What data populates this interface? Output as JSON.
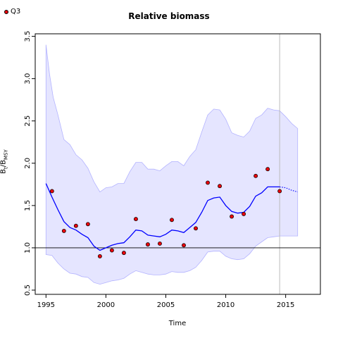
{
  "chart_data": {
    "type": "line",
    "title": "Relative biomass",
    "xlabel": "Time",
    "ylabel": {
      "main": "B",
      "sub1": "t",
      "sep": "/B",
      "sub2": "MSY"
    },
    "xlim": [
      1994.1,
      2017.9
    ],
    "ylim": [
      0.45,
      3.53
    ],
    "xticks": [
      1995,
      2000,
      2005,
      2010,
      2015
    ],
    "yticks": [
      0.5,
      1.0,
      1.5,
      2.0,
      2.5,
      3.0,
      3.5
    ],
    "ytick_labels": [
      "0.5",
      "1.0",
      "1.5",
      "2.0",
      "2.5",
      "3.0",
      "3.5"
    ],
    "reference_line_y": 1.0,
    "vertical_line_x": 2014.5,
    "legend": {
      "label": "Q3",
      "position": "top-left"
    },
    "colors": {
      "band_fill": "#e5e5ff",
      "band_edge": "#b3b3ff",
      "line": "#0000ff",
      "point_fill": "#e8000b",
      "reference": "#000000",
      "vline": "#bbbbbb"
    },
    "series": [
      {
        "kind": "median",
        "x": [
          1995.0,
          1995.5,
          1996.0,
          1996.5,
          1997.0,
          1997.5,
          1998.0,
          1998.5,
          1999.0,
          1999.5,
          2000.0,
          2000.5,
          2001.0,
          2001.5,
          2002.0,
          2002.5,
          2003.0,
          2003.5,
          2004.0,
          2004.5,
          2005.0,
          2005.5,
          2006.0,
          2006.5,
          2007.0,
          2007.5,
          2008.0,
          2008.5,
          2009.0,
          2009.5,
          2010.0,
          2010.5,
          2011.0,
          2011.5,
          2012.0,
          2012.5,
          2013.0,
          2013.5,
          2014.0,
          2014.5
        ],
        "y": [
          1.76,
          1.6,
          1.45,
          1.31,
          1.24,
          1.21,
          1.16,
          1.12,
          1.02,
          0.97,
          1.0,
          1.03,
          1.05,
          1.06,
          1.13,
          1.21,
          1.2,
          1.15,
          1.14,
          1.13,
          1.16,
          1.21,
          1.2,
          1.18,
          1.24,
          1.3,
          1.42,
          1.56,
          1.59,
          1.6,
          1.5,
          1.43,
          1.41,
          1.42,
          1.49,
          1.61,
          1.65,
          1.72,
          1.72,
          1.72
        ]
      },
      {
        "kind": "projection",
        "x": [
          2014.5,
          2015.0,
          2015.5,
          2016.0
        ],
        "y": [
          1.72,
          1.71,
          1.68,
          1.66
        ]
      },
      {
        "kind": "upper",
        "x": [
          1995.0,
          1995.3,
          1995.6,
          1996.0,
          1996.5,
          1997.0,
          1997.5,
          1998.0,
          1998.5,
          1999.0,
          1999.5,
          2000.0,
          2000.5,
          2001.0,
          2001.5,
          2002.0,
          2002.5,
          2003.0,
          2003.5,
          2004.0,
          2004.5,
          2005.0,
          2005.5,
          2006.0,
          2006.5,
          2007.0,
          2007.5,
          2008.0,
          2008.5,
          2009.0,
          2009.5,
          2010.0,
          2010.5,
          2011.0,
          2011.5,
          2012.0,
          2012.5,
          2013.0,
          2013.5,
          2014.0,
          2014.5,
          2015.0,
          2015.5,
          2016.0
        ],
        "y": [
          3.4,
          3.05,
          2.78,
          2.57,
          2.28,
          2.22,
          2.1,
          2.04,
          1.94,
          1.78,
          1.66,
          1.71,
          1.72,
          1.76,
          1.76,
          1.9,
          2.01,
          2.01,
          1.93,
          1.93,
          1.91,
          1.97,
          2.02,
          2.02,
          1.97,
          2.08,
          2.16,
          2.37,
          2.57,
          2.64,
          2.63,
          2.52,
          2.36,
          2.33,
          2.31,
          2.38,
          2.53,
          2.57,
          2.65,
          2.63,
          2.62,
          2.55,
          2.47,
          2.41
        ]
      },
      {
        "kind": "lower",
        "x": [
          1995.0,
          1995.5,
          1996.0,
          1996.5,
          1997.0,
          1997.5,
          1998.0,
          1998.5,
          1999.0,
          1999.5,
          2000.0,
          2000.5,
          2001.0,
          2001.5,
          2002.0,
          2002.5,
          2003.0,
          2003.5,
          2004.0,
          2004.5,
          2005.0,
          2005.5,
          2006.0,
          2006.5,
          2007.0,
          2007.5,
          2008.0,
          2008.5,
          2009.0,
          2009.5,
          2010.0,
          2010.5,
          2011.0,
          2011.5,
          2012.0,
          2012.5,
          2013.0,
          2013.5,
          2014.0,
          2014.5,
          2015.0,
          2015.5,
          2016.0
        ],
        "y": [
          0.92,
          0.91,
          0.82,
          0.75,
          0.7,
          0.69,
          0.66,
          0.65,
          0.59,
          0.57,
          0.59,
          0.61,
          0.62,
          0.64,
          0.69,
          0.73,
          0.71,
          0.69,
          0.68,
          0.68,
          0.69,
          0.72,
          0.71,
          0.71,
          0.73,
          0.77,
          0.85,
          0.95,
          0.96,
          0.96,
          0.9,
          0.87,
          0.86,
          0.87,
          0.93,
          1.02,
          1.07,
          1.12,
          1.13,
          1.14,
          1.14,
          1.14,
          1.14
        ]
      },
      {
        "kind": "observations",
        "name": "Q3",
        "x": [
          1995.5,
          1996.5,
          1997.5,
          1998.5,
          1999.5,
          2000.5,
          2001.5,
          2002.5,
          2003.5,
          2004.5,
          2005.5,
          2006.5,
          2007.5,
          2008.5,
          2009.5,
          2010.5,
          2011.5,
          2012.5,
          2013.5,
          2014.5
        ],
        "y": [
          1.67,
          1.2,
          1.26,
          1.28,
          0.9,
          0.97,
          0.94,
          1.34,
          1.04,
          1.05,
          1.33,
          1.03,
          1.23,
          1.77,
          1.73,
          1.37,
          1.4,
          1.85,
          1.93,
          1.67
        ]
      }
    ]
  }
}
